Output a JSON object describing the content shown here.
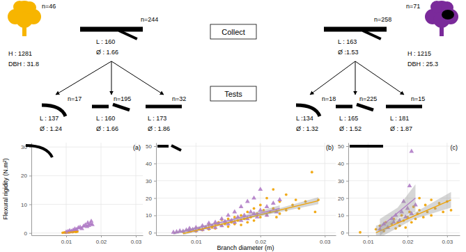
{
  "diagram": {
    "steps": [
      "Collect",
      "Tests"
    ],
    "groups": [
      {
        "color": "#F7B500",
        "tree": {
          "n": "n=46",
          "height": "H : 1281",
          "dbh": "DBH : 31.8"
        },
        "collect": {
          "n": "n=244",
          "length": "L : 160",
          "diameter": "Ø : 1.66"
        },
        "tests": [
          {
            "n": "n=17",
            "length": "L : 137",
            "diameter": "Ø : 1.24"
          },
          {
            "n": "n=195",
            "length": "L : 160",
            "diameter": "Ø : 1.66"
          },
          {
            "n": "n=32",
            "length": "L : 173",
            "diameter": "Ø : 1.86"
          }
        ]
      },
      {
        "color": "#7A2A9A",
        "tree": {
          "n": "n=71",
          "height": "H : 1215",
          "dbh": "DBH : 25.3"
        },
        "collect": {
          "n": "n=258",
          "length": "L : 163",
          "diameter": "Ø :1.53"
        },
        "tests": [
          {
            "n": "n=18",
            "length": "L :134",
            "diameter": "Ø : 1.32"
          },
          {
            "n": "n=225",
            "length": "L : 165",
            "diameter": "Ø : 1.52"
          },
          {
            "n": "n=15",
            "length": "L : 181",
            "diameter": "Ø : 1.87"
          }
        ]
      }
    ]
  },
  "chart_data": [
    {
      "type": "scatter",
      "title": "(a)",
      "y_label": "Flexural rigidity (N.m²)",
      "xlim": [
        0,
        0.032
      ],
      "xticks": [
        0.01,
        0.02,
        0.03
      ],
      "ylim": [
        -0.8,
        31.5
      ],
      "yticks": [
        0,
        10,
        20,
        30
      ],
      "grid": true,
      "series": [
        {
          "type": "scatter",
          "color": "#F0A202",
          "marker": "circle",
          "x": [
            0.009,
            0.0095,
            0.0098,
            0.01,
            0.0102,
            0.0105,
            0.0108,
            0.011,
            0.0112,
            0.0115,
            0.0118,
            0.012,
            0.0122,
            0.0125,
            0.0128,
            0.013,
            0.0132
          ],
          "values": [
            0.1,
            0.2,
            0.1,
            0.3,
            0.2,
            0.3,
            0.2,
            0.4,
            0.3,
            0.5,
            0.3,
            0.4,
            0.6,
            0.5,
            0.4,
            0.6,
            0.5
          ]
        },
        {
          "type": "scatter",
          "color": "#B07CC6",
          "marker": "triangle",
          "x": [
            0.01,
            0.0105,
            0.011,
            0.0115,
            0.012,
            0.0125,
            0.013,
            0.0135,
            0.014,
            0.0145,
            0.015,
            0.0155,
            0.016,
            0.0162,
            0.0165,
            0.017,
            0.0172,
            0.0175
          ],
          "values": [
            0.3,
            0.5,
            0.8,
            0.6,
            1.0,
            1.4,
            1.2,
            1.8,
            2.0,
            1.5,
            2.4,
            2.8,
            2.2,
            3.5,
            2.6,
            3.2,
            4.1,
            2.9
          ]
        },
        {
          "type": "line",
          "color": "#F0A202",
          "line_style": "solid",
          "x": [
            0.009,
            0.0132
          ],
          "values": [
            0.15,
            0.55
          ]
        },
        {
          "type": "line",
          "color": "#B07CC6",
          "line_style": "solid",
          "x": [
            0.01,
            0.0175
          ],
          "values": [
            0.3,
            3.1
          ]
        }
      ]
    },
    {
      "type": "scatter",
      "title": "(b)",
      "x_label": "Branch diameter (m)",
      "xlim": [
        0.0038,
        0.0317
      ],
      "xticks": [
        0.01,
        0.02,
        0.03
      ],
      "ylim": [
        -1.5,
        52
      ],
      "yticks": [
        0,
        10,
        20,
        30,
        40,
        50
      ],
      "grid": true,
      "series": [
        {
          "type": "scatter",
          "color": "#F0A202",
          "marker": "circle",
          "x": [
            0.008,
            0.009,
            0.01,
            0.0105,
            0.011,
            0.0115,
            0.012,
            0.012,
            0.0125,
            0.013,
            0.013,
            0.0135,
            0.014,
            0.014,
            0.0145,
            0.015,
            0.015,
            0.0155,
            0.016,
            0.016,
            0.0165,
            0.017,
            0.017,
            0.0175,
            0.018,
            0.018,
            0.0185,
            0.019,
            0.019,
            0.0195,
            0.02,
            0.02,
            0.0205,
            0.021,
            0.021,
            0.0215,
            0.022,
            0.022,
            0.0225,
            0.023,
            0.023,
            0.024,
            0.024,
            0.025,
            0.0255,
            0.026,
            0.027,
            0.028,
            0.0285,
            0.029
          ],
          "values": [
            0.5,
            1,
            0.8,
            2,
            1.5,
            3,
            2,
            4.5,
            3,
            5,
            2.5,
            6,
            4,
            7.5,
            5,
            3.5,
            8,
            6,
            9,
            5,
            7,
            10,
            4.5,
            8,
            12,
            6,
            9,
            14,
            7,
            11,
            16,
            9,
            13,
            20,
            10,
            12,
            25,
            14,
            9,
            18,
            11,
            22,
            13,
            16,
            19,
            14,
            18,
            35,
            12,
            19
          ]
        },
        {
          "type": "scatter",
          "color": "#B07CC6",
          "marker": "triangle",
          "x": [
            0.0065,
            0.007,
            0.0075,
            0.008,
            0.0085,
            0.009,
            0.009,
            0.0095,
            0.01,
            0.01,
            0.0105,
            0.011,
            0.011,
            0.0115,
            0.012,
            0.012,
            0.0125,
            0.013,
            0.013,
            0.0135,
            0.014,
            0.014,
            0.0145,
            0.015,
            0.015,
            0.0155,
            0.016,
            0.016,
            0.0165,
            0.017,
            0.017,
            0.0175,
            0.018,
            0.018,
            0.0185,
            0.019,
            0.019,
            0.0195,
            0.02,
            0.02,
            0.021,
            0.021,
            0.022,
            0.0225,
            0.023
          ],
          "values": [
            0.2,
            0.5,
            1,
            0.8,
            1.5,
            1,
            2.5,
            1.8,
            3,
            1.2,
            2.2,
            4,
            1.8,
            3,
            5.5,
            2.5,
            4,
            6,
            3,
            5,
            8,
            4,
            6.5,
            10,
            5,
            7,
            12,
            6,
            9,
            15,
            7,
            10,
            18,
            8,
            12,
            11,
            20,
            9,
            25,
            13,
            15,
            10,
            17,
            12,
            19
          ]
        },
        {
          "type": "line",
          "color": "#F0A202",
          "line_style": "solid",
          "x": [
            0.008,
            0.0185,
            0.029
          ],
          "values": [
            -0.5,
            9,
            18.5
          ],
          "lower": [
            -1.4,
            8.5,
            16.5
          ],
          "upper": [
            0.4,
            9.5,
            20.5
          ]
        },
        {
          "type": "line",
          "color": "#B07CC6",
          "line_style": "solid",
          "x": [
            0.0065,
            0.0148,
            0.023
          ],
          "values": [
            -0.5,
            6.8,
            14
          ],
          "lower": [
            -1.3,
            6.3,
            12.2
          ],
          "upper": [
            0.3,
            7.3,
            15.8
          ]
        }
      ]
    },
    {
      "type": "scatter",
      "title": "(c)",
      "xlim": [
        0.005,
        0.0332
      ],
      "xticks": [
        0.01,
        0.02,
        0.03
      ],
      "ylim": [
        -1.5,
        52
      ],
      "yticks": [
        0,
        10,
        20,
        30,
        40,
        50
      ],
      "grid": true,
      "series": [
        {
          "type": "scatter",
          "color": "#F0A202",
          "marker": "circle",
          "x": [
            0.008,
            0.012,
            0.013,
            0.014,
            0.0145,
            0.015,
            0.016,
            0.0165,
            0.017,
            0.0175,
            0.018,
            0.0185,
            0.019,
            0.0195,
            0.02,
            0.0205,
            0.021,
            0.0215,
            0.022,
            0.0225,
            0.023,
            0.023,
            0.024,
            0.0245,
            0.025,
            0.026,
            0.026,
            0.027,
            0.028,
            0.029,
            0.03,
            0.031
          ],
          "values": [
            0.2,
            2,
            4,
            1,
            6,
            3,
            5,
            8,
            2.5,
            6,
            4,
            10,
            7,
            3,
            9,
            12,
            6,
            15,
            8,
            11,
            20,
            13,
            9,
            16,
            12,
            19,
            10,
            14,
            17,
            12,
            18,
            13
          ]
        },
        {
          "type": "scatter",
          "color": "#B07CC6",
          "marker": "triangle",
          "x": [
            0.013,
            0.014,
            0.015,
            0.016,
            0.0165,
            0.017,
            0.018,
            0.0185,
            0.019,
            0.0195,
            0.02,
            0.0205,
            0.021,
            0.021,
            0.022
          ],
          "values": [
            2,
            5,
            3,
            8,
            6,
            10,
            7,
            12,
            18,
            9,
            14,
            27,
            11,
            47,
            16
          ]
        },
        {
          "type": "line",
          "color": "#F0A202",
          "line_style": "solid",
          "x": [
            0.012,
            0.0215,
            0.031
          ],
          "values": [
            0,
            9.5,
            19
          ],
          "lower": [
            -4,
            7.8,
            14.5
          ],
          "upper": [
            4,
            11.2,
            23.5
          ]
        },
        {
          "type": "line",
          "color": "#B07CC6",
          "line_style": "solid",
          "x": [
            0.013,
            0.0175,
            0.022
          ],
          "values": [
            3,
            11.5,
            20
          ],
          "lower": [
            -2,
            8.5,
            12
          ],
          "upper": [
            8,
            14.5,
            28
          ]
        }
      ]
    }
  ]
}
